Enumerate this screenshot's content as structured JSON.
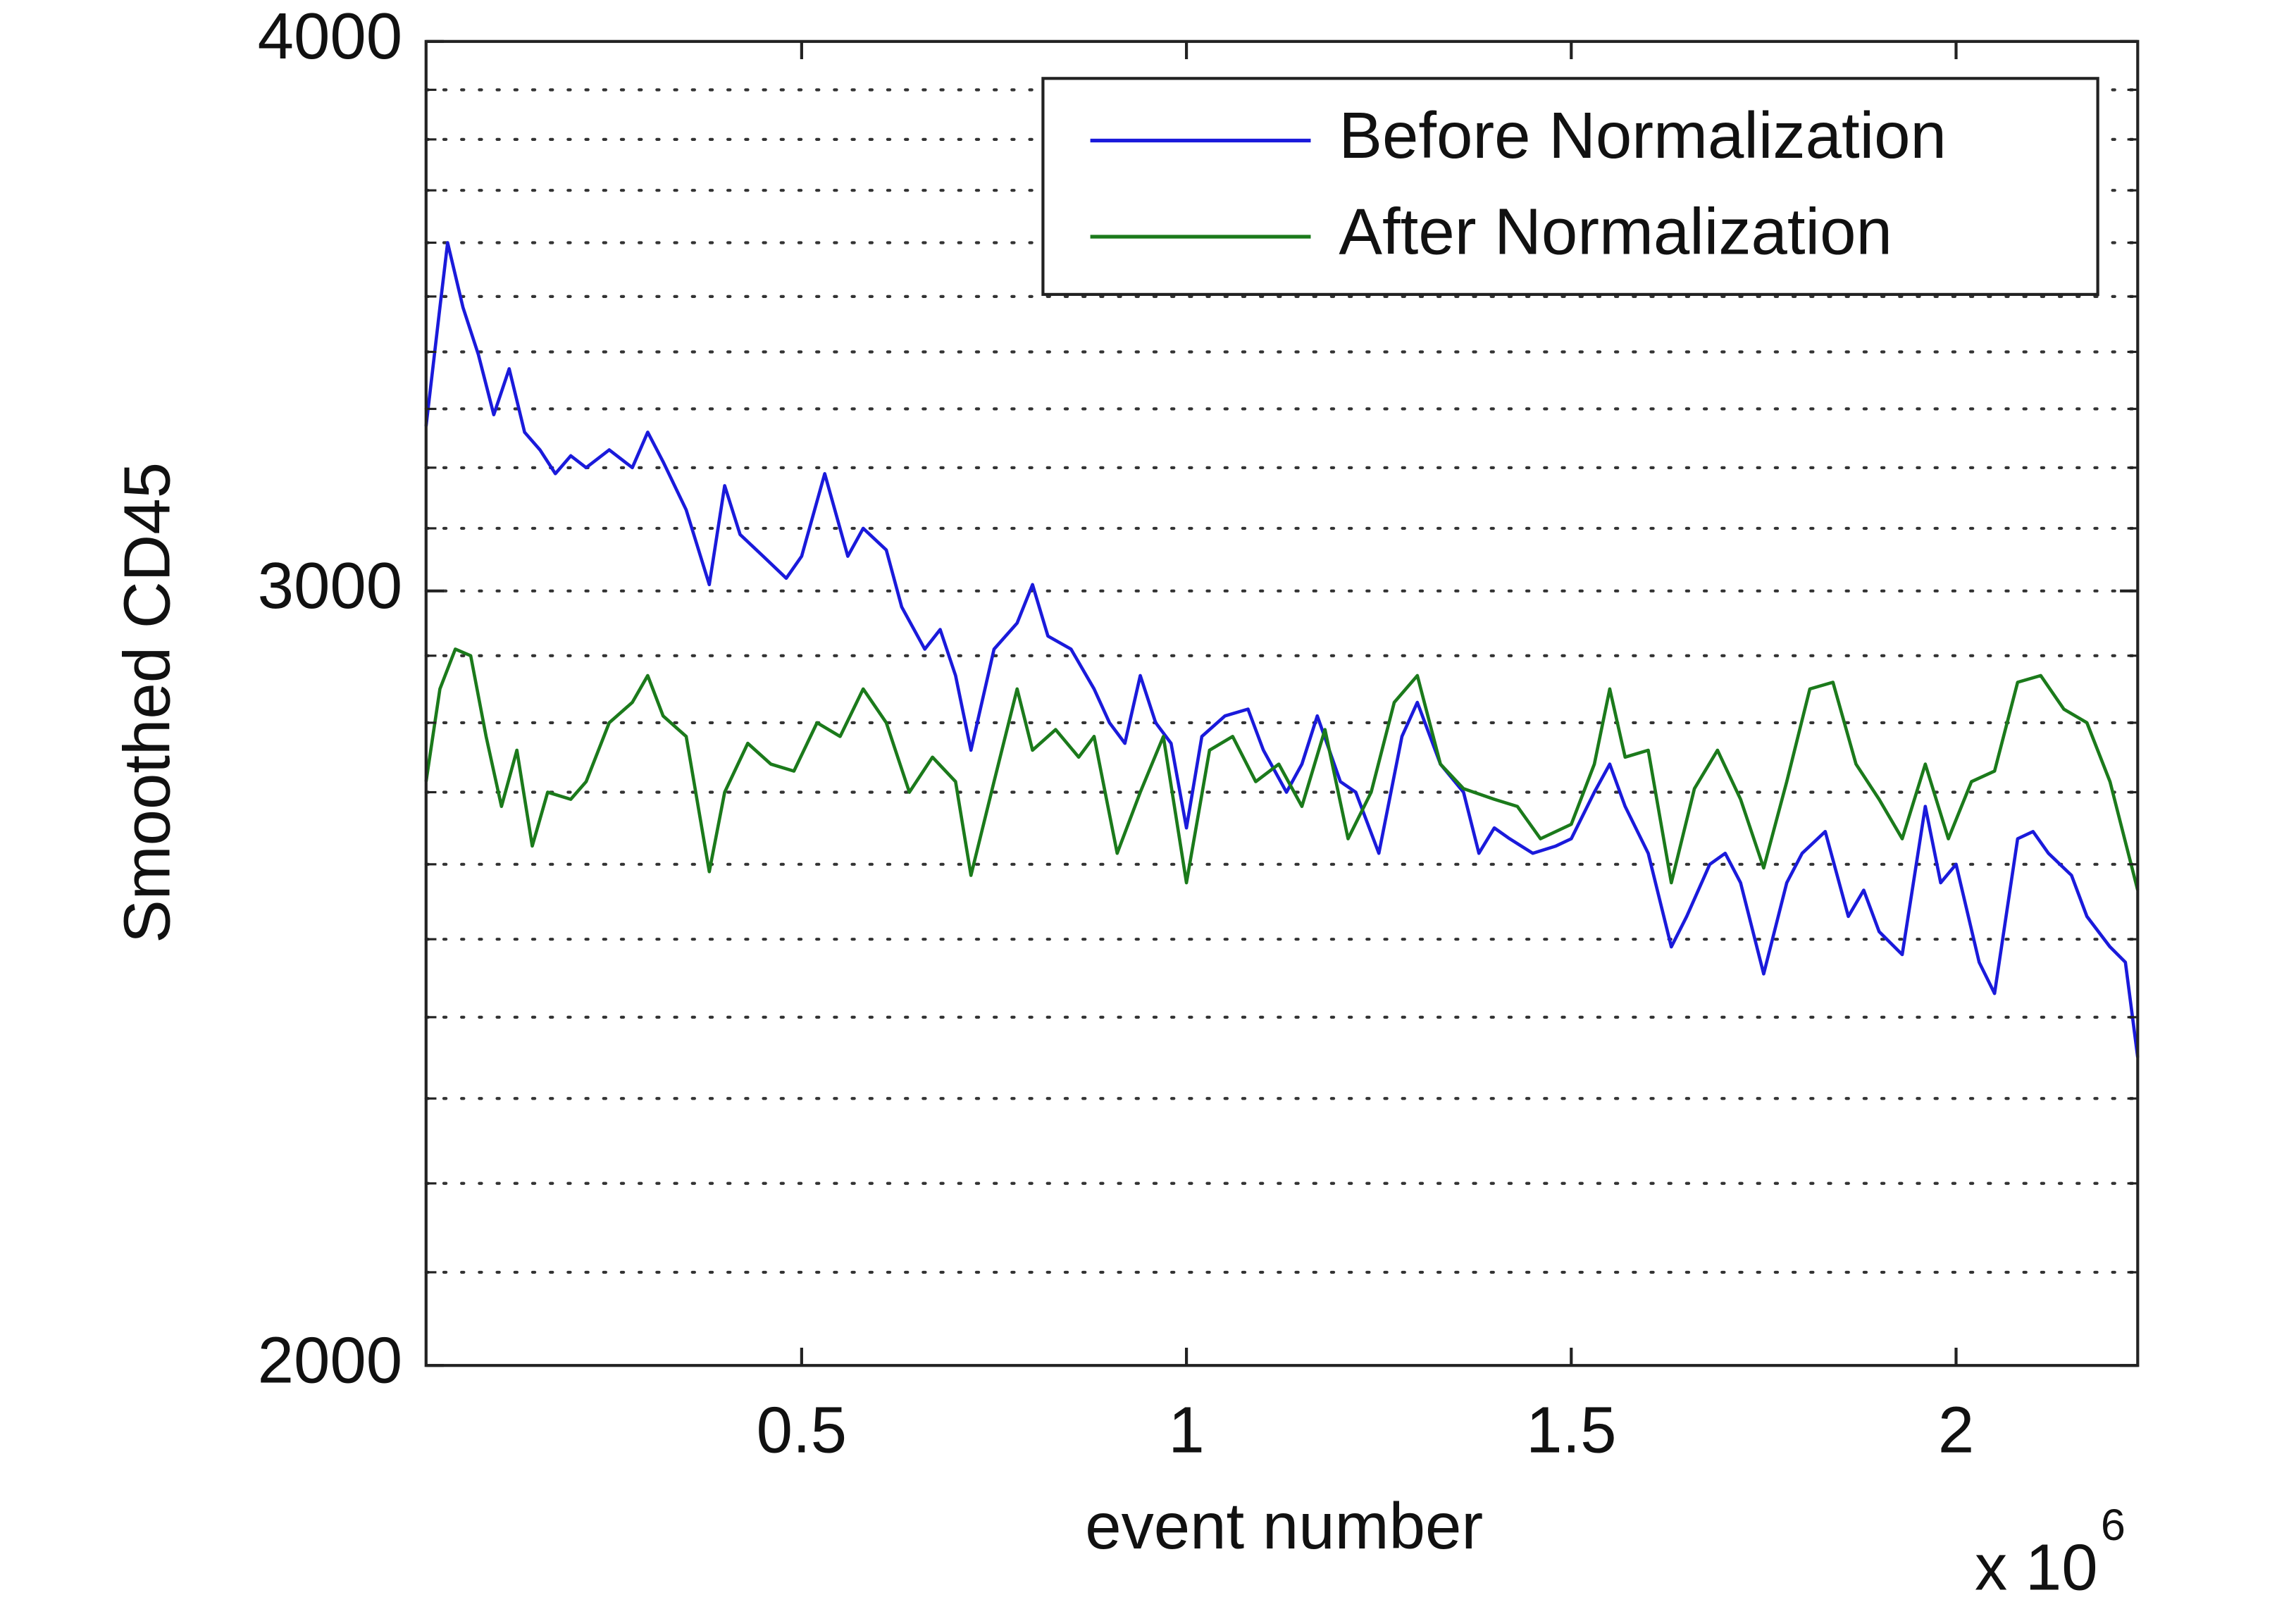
{
  "chart_data": {
    "type": "line",
    "ylabel": "Smoothed CD45",
    "xlabel": "event number",
    "x_scale_label": "x 10",
    "x_scale_exponent": "6",
    "xlim": [
      0.012,
      2.236
    ],
    "xticks": [
      0.5,
      1,
      1.5,
      2
    ],
    "ylim": [
      2000,
      4000
    ],
    "yticks": [
      2000,
      3000,
      4000
    ],
    "yminorticks": [
      2100,
      2200,
      2300,
      2400,
      2500,
      2600,
      2700,
      2800,
      2900,
      3100,
      3200,
      3300,
      3400,
      3500,
      3600,
      3700,
      3800,
      3900
    ],
    "yscale": "log",
    "grid": true,
    "legend": "upper right",
    "series": [
      {
        "name": "Before Normalization",
        "color": "#1a1adb",
        "x": [
          0.012,
          0.03,
          0.04,
          0.06,
          0.08,
          0.1,
          0.12,
          0.14,
          0.16,
          0.18,
          0.2,
          0.22,
          0.25,
          0.28,
          0.3,
          0.32,
          0.35,
          0.38,
          0.4,
          0.42,
          0.45,
          0.48,
          0.5,
          0.53,
          0.56,
          0.58,
          0.61,
          0.63,
          0.66,
          0.68,
          0.7,
          0.72,
          0.75,
          0.78,
          0.8,
          0.82,
          0.85,
          0.88,
          0.9,
          0.92,
          0.94,
          0.96,
          0.98,
          1.0,
          1.02,
          1.05,
          1.08,
          1.1,
          1.13,
          1.15,
          1.17,
          1.2,
          1.22,
          1.25,
          1.28,
          1.3,
          1.33,
          1.36,
          1.38,
          1.4,
          1.42,
          1.45,
          1.48,
          1.5,
          1.53,
          1.55,
          1.57,
          1.6,
          1.63,
          1.65,
          1.68,
          1.7,
          1.72,
          1.75,
          1.78,
          1.8,
          1.83,
          1.86,
          1.88,
          1.9,
          1.93,
          1.96,
          1.98,
          2.0,
          2.03,
          2.05,
          2.08,
          2.1,
          2.12,
          2.15,
          2.17,
          2.2,
          2.22,
          2.236
        ],
        "values": [
          3270,
          3480,
          3600,
          3480,
          3395,
          3290,
          3370,
          3260,
          3230,
          3190,
          3220,
          3200,
          3230,
          3200,
          3260,
          3210,
          3130,
          3010,
          3170,
          3090,
          3055,
          3020,
          3055,
          3190,
          3055,
          3100,
          3065,
          2975,
          2910,
          2940,
          2870,
          2760,
          2910,
          2950,
          3010,
          2930,
          2910,
          2850,
          2800,
          2770,
          2870,
          2800,
          2770,
          2650,
          2780,
          2810,
          2820,
          2760,
          2700,
          2740,
          2810,
          2715,
          2700,
          2615,
          2780,
          2830,
          2740,
          2700,
          2615,
          2650,
          2635,
          2615,
          2625,
          2635,
          2700,
          2740,
          2680,
          2615,
          2490,
          2530,
          2600,
          2615,
          2575,
          2455,
          2575,
          2615,
          2645,
          2530,
          2565,
          2510,
          2480,
          2680,
          2575,
          2600,
          2470,
          2430,
          2635,
          2645,
          2615,
          2585,
          2530,
          2490,
          2470,
          2350
        ]
      },
      {
        "name": "After Normalization",
        "color": "#1b7a1b",
        "x": [
          0.012,
          0.03,
          0.05,
          0.07,
          0.09,
          0.11,
          0.13,
          0.15,
          0.17,
          0.2,
          0.22,
          0.25,
          0.28,
          0.3,
          0.32,
          0.35,
          0.38,
          0.4,
          0.43,
          0.46,
          0.49,
          0.52,
          0.55,
          0.58,
          0.61,
          0.64,
          0.67,
          0.7,
          0.72,
          0.75,
          0.78,
          0.8,
          0.83,
          0.86,
          0.88,
          0.91,
          0.94,
          0.97,
          1.0,
          1.03,
          1.06,
          1.09,
          1.12,
          1.15,
          1.18,
          1.21,
          1.24,
          1.27,
          1.3,
          1.33,
          1.36,
          1.4,
          1.43,
          1.46,
          1.5,
          1.53,
          1.55,
          1.57,
          1.6,
          1.63,
          1.66,
          1.69,
          1.72,
          1.75,
          1.78,
          1.81,
          1.84,
          1.87,
          1.9,
          1.93,
          1.96,
          1.99,
          2.02,
          2.05,
          2.08,
          2.11,
          2.14,
          2.17,
          2.2,
          2.236
        ],
        "values": [
          2715,
          2850,
          2910,
          2900,
          2780,
          2680,
          2760,
          2625,
          2700,
          2690,
          2715,
          2800,
          2830,
          2870,
          2810,
          2780,
          2590,
          2700,
          2770,
          2740,
          2730,
          2800,
          2780,
          2850,
          2800,
          2700,
          2750,
          2715,
          2585,
          2715,
          2850,
          2760,
          2790,
          2750,
          2780,
          2615,
          2700,
          2780,
          2575,
          2760,
          2780,
          2715,
          2740,
          2680,
          2790,
          2635,
          2700,
          2830,
          2870,
          2740,
          2705,
          2690,
          2680,
          2635,
          2655,
          2740,
          2850,
          2750,
          2760,
          2575,
          2705,
          2760,
          2690,
          2595,
          2715,
          2850,
          2860,
          2740,
          2690,
          2635,
          2740,
          2635,
          2715,
          2730,
          2860,
          2870,
          2820,
          2800,
          2715,
          2565
        ]
      }
    ]
  }
}
